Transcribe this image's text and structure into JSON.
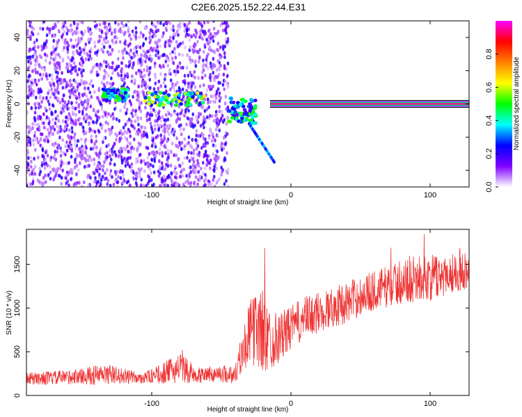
{
  "title": "C2E6.2025.152.22.44.E31",
  "chart_data": [
    {
      "type": "heatmap",
      "xlabel": "Height of straight line (km)",
      "ylabel": "Frequency (Hz)",
      "xlim": [
        -190,
        128
      ],
      "ylim": [
        -50,
        50
      ],
      "xticks": [
        -100,
        0,
        100
      ],
      "xtick_labels": [
        "-100",
        "0",
        "100"
      ],
      "yticks": [
        -40,
        -20,
        0,
        20,
        40
      ],
      "ytick_labels": [
        "-40",
        "-20",
        "0",
        "20",
        "40"
      ],
      "colorbar": {
        "label": "Normalized spectral amplitude",
        "range": [
          0,
          1
        ],
        "ticks": [
          0.0,
          0.2,
          0.4,
          0.6,
          0.8
        ],
        "tick_labels": [
          "0.0",
          "0.2",
          "0.4",
          "0.6",
          "0.8"
        ],
        "colors": [
          "#ffffff",
          "#8000ff",
          "#0000ff",
          "#00ffff",
          "#00ff00",
          "#ffff00",
          "#ff8000",
          "#ff0000",
          "#ff00ff"
        ]
      },
      "features": [
        {
          "region": "noise",
          "x": [
            -190,
            -45
          ],
          "y": [
            -50,
            50
          ],
          "amplitude": 0.2
        },
        {
          "region": "cluster",
          "x": [
            -135,
            -117
          ],
          "y": [
            2,
            9
          ],
          "amplitude": 0.45
        },
        {
          "region": "cluster",
          "x": [
            -105,
            -60
          ],
          "y": [
            -1,
            7
          ],
          "amplitude": 0.55
        },
        {
          "region": "cluster",
          "x": [
            -45,
            -25
          ],
          "y": [
            -12,
            4
          ],
          "amplitude": 0.45
        },
        {
          "region": "streak",
          "x": [
            -30,
            -12
          ],
          "y": [
            -35,
            -12
          ],
          "amplitude": 0.35
        },
        {
          "region": "carrier",
          "x": [
            -15,
            128
          ],
          "y": [
            0,
            0
          ],
          "amplitude": 0.95
        }
      ],
      "grid": false
    },
    {
      "type": "line",
      "xlabel": "Height of straight line (km)",
      "ylabel": "SNR (10 * v/v)",
      "xlim": [
        -190,
        128
      ],
      "ylim": [
        0,
        1900
      ],
      "xticks": [
        -100,
        0,
        100
      ],
      "xtick_labels": [
        "-100",
        "0",
        "100"
      ],
      "yticks": [
        0,
        500,
        1000,
        1500
      ],
      "ytick_labels": [
        "0",
        "500",
        "1000",
        "1500"
      ],
      "color": "#ee3333",
      "series": [
        {
          "x": [
            -190,
            -170,
            -150,
            -140,
            -130,
            -120,
            -110,
            -100,
            -90,
            -80,
            -70,
            -60,
            -50,
            -40,
            -35,
            -30,
            -25,
            -20,
            -15,
            -10,
            -5,
            0,
            10,
            20,
            30,
            40,
            50,
            60,
            70,
            80,
            90,
            100,
            110,
            120,
            128
          ],
          "mean": [
            190,
            200,
            220,
            230,
            240,
            220,
            200,
            220,
            260,
            320,
            250,
            240,
            250,
            240,
            500,
            700,
            780,
            720,
            640,
            660,
            700,
            780,
            880,
            950,
            1010,
            1060,
            1140,
            1200,
            1250,
            1300,
            1330,
            1340,
            1380,
            1420,
            1440
          ],
          "spread": [
            70,
            80,
            90,
            120,
            110,
            90,
            70,
            80,
            130,
            170,
            120,
            90,
            100,
            110,
            250,
            350,
            450,
            500,
            350,
            300,
            280,
            250,
            250,
            240,
            230,
            240,
            230,
            230,
            240,
            250,
            260,
            270,
            240,
            230,
            220
          ]
        }
      ],
      "grid": false
    }
  ]
}
